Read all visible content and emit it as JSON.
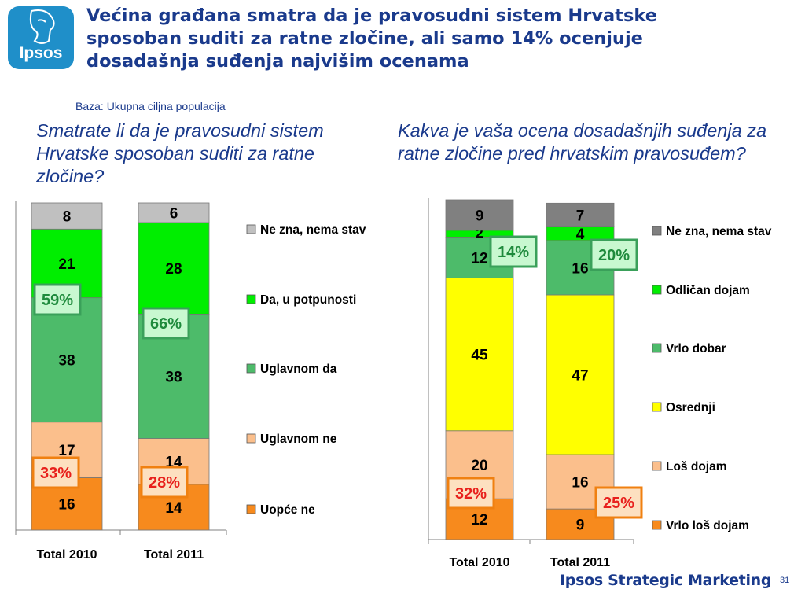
{
  "header": {
    "logo_text": "Ipsos",
    "title_lines": [
      "Većina građana smatra da je pravosudni sistem Hrvatske",
      "sposoban suditi za ratne zločine, ali samo 14% ocenjuje",
      "dosadašnja suđenja najvišim ocenama"
    ],
    "base": "Baza: Ukupna ciljna populacija"
  },
  "footer": {
    "brand": "Ipsos Strategic Marketing",
    "page": "31"
  },
  "colors": {
    "title": "#1a3a8c",
    "ne_zna": "#c0c0c0",
    "ne_zna_dark": "#808080",
    "green": "#00ee00",
    "mid_green": "#4dbb6a",
    "yellow": "#ffff00",
    "peach": "#fbbf8c",
    "orange": "#f78a1d",
    "green_box": "#3aa05a",
    "orange_box": "#f08010"
  },
  "chart_data": [
    {
      "type": "bar",
      "stacked": true,
      "title": "Smatrate li da je pravosudni sistem Hrvatske sposoban suditi za ratne zločine?",
      "categories": [
        "Total 2010",
        "Total 2011"
      ],
      "series": [
        {
          "name": "Uopće ne",
          "values": [
            16,
            14
          ],
          "color": "#f78a1d"
        },
        {
          "name": "Uglavnom ne",
          "values": [
            17,
            14
          ],
          "color": "#fbbf8c"
        },
        {
          "name": "Uglavnom da",
          "values": [
            38,
            38
          ],
          "color": "#4dbb6a"
        },
        {
          "name": "Da, u potpunosti",
          "values": [
            21,
            28
          ],
          "color": "#00ee00"
        },
        {
          "name": "Ne zna, nema stav",
          "values": [
            8,
            6
          ],
          "color": "#c0c0c0"
        }
      ],
      "annotations": {
        "positive": [
          "59%",
          "66%"
        ],
        "negative": [
          "33%",
          "28%"
        ]
      },
      "legend_order": [
        "Ne zna, nema stav",
        "Da, u potpunosti",
        "Uglavnom da",
        "Uglavnom ne",
        "Uopće ne"
      ],
      "legend": "right"
    },
    {
      "type": "bar",
      "stacked": true,
      "title": "Kakva je vaša ocena dosadašnjih suđenja za ratne zločine pred hrvatskim pravosuđem?",
      "categories": [
        "Total 2010",
        "Total 2011"
      ],
      "series": [
        {
          "name": "Vrlo loš dojam",
          "values": [
            12,
            9
          ],
          "color": "#f78a1d"
        },
        {
          "name": "Loš dojam",
          "values": [
            20,
            16
          ],
          "color": "#fbbf8c"
        },
        {
          "name": "Osrednji",
          "values": [
            45,
            47
          ],
          "color": "#ffff00"
        },
        {
          "name": "Vrlo dobar",
          "values": [
            12,
            16
          ],
          "color": "#4dbb6a"
        },
        {
          "name": "Odličan dojam",
          "values": [
            2,
            4
          ],
          "color": "#00ee00"
        },
        {
          "name": "Ne zna, nema stav",
          "values": [
            9,
            7
          ],
          "color": "#808080"
        }
      ],
      "annotations": {
        "positive": [
          "14%",
          "20%"
        ],
        "negative": [
          "32%",
          "25%"
        ]
      },
      "legend_order": [
        "Ne zna, nema stav",
        "Odličan dojam",
        "Vrlo dobar",
        "Osrednji",
        "Loš dojam",
        "Vrlo loš dojam"
      ],
      "legend": "right"
    }
  ]
}
